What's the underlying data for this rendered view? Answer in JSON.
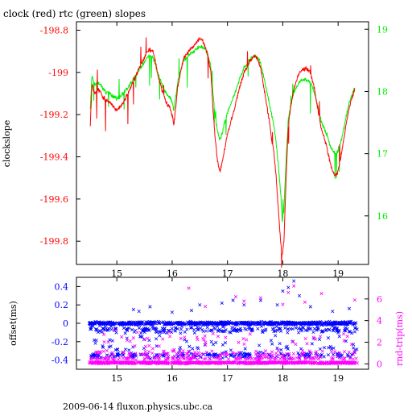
{
  "page": {
    "title": "clock (red) rtc (green) slopes",
    "footer": "2009-06-14 fluxon.physics.ubc.ca"
  },
  "colors": {
    "clock": "#ff0000",
    "rtc": "#00ee00",
    "offset": "#0000ff",
    "roundtrip": "#ff00ff",
    "axis": "#000000"
  },
  "chart_data": [
    {
      "type": "line",
      "ylabel": "clockslope",
      "y2label": "",
      "x_ticks": [
        "15",
        "16",
        "17",
        "18",
        "19"
      ],
      "y_ticks": [
        "-198.8",
        "-199",
        "-199.2",
        "-199.4",
        "-199.6",
        "-199.8"
      ],
      "y2_ticks": [
        "19",
        "18",
        "17",
        "16"
      ],
      "xlim": [
        14.27,
        19.55
      ],
      "ylim": [
        -199.91,
        -198.76
      ],
      "y2lim": [
        15.22,
        19.12
      ],
      "grid": false,
      "series": [
        {
          "name": "clock",
          "axis": "left",
          "x": [
            14.52,
            14.55,
            14.6,
            14.65,
            14.7,
            14.75,
            14.8,
            14.9,
            15.0,
            15.1,
            15.2,
            15.3,
            15.4,
            15.5,
            15.55,
            15.6,
            15.65,
            15.7,
            15.75,
            15.8,
            15.85,
            15.9,
            15.95,
            16.0,
            16.03,
            16.07,
            16.1,
            16.15,
            16.2,
            16.3,
            16.4,
            16.5,
            16.55,
            16.6,
            16.65,
            16.7,
            16.74,
            16.78,
            16.82,
            16.86,
            16.9,
            16.95,
            17.0,
            17.1,
            17.2,
            17.3,
            17.4,
            17.5,
            17.55,
            17.6,
            17.65,
            17.7,
            17.75,
            17.8,
            17.84,
            17.88,
            17.92,
            17.96,
            17.99,
            18.02,
            18.06,
            18.1,
            18.15,
            18.2,
            18.3,
            18.4,
            18.5,
            18.55,
            18.6,
            18.65,
            18.7,
            18.75,
            18.8,
            18.85,
            18.9,
            18.95,
            19.0,
            19.05,
            19.1,
            19.15,
            19.2,
            19.25,
            19.3
          ],
          "y": [
            -199.25,
            -199.06,
            -199.1,
            -199.08,
            -199.09,
            -199.12,
            -199.13,
            -199.15,
            -199.18,
            -199.15,
            -199.1,
            -199.04,
            -198.98,
            -198.93,
            -198.9,
            -198.89,
            -198.9,
            -198.95,
            -199.02,
            -199.07,
            -199.11,
            -199.15,
            -199.16,
            -199.2,
            -199.25,
            -199.15,
            -199.07,
            -199.0,
            -198.94,
            -198.9,
            -198.87,
            -198.84,
            -198.85,
            -198.88,
            -198.92,
            -199.0,
            -199.18,
            -199.32,
            -199.42,
            -199.47,
            -199.43,
            -199.36,
            -199.29,
            -199.2,
            -199.09,
            -199.0,
            -198.95,
            -198.92,
            -198.94,
            -198.98,
            -199.06,
            -199.14,
            -199.22,
            -199.32,
            -199.38,
            -199.5,
            -199.65,
            -199.8,
            -199.87,
            -199.8,
            -199.5,
            -199.25,
            -199.15,
            -199.08,
            -199.0,
            -198.98,
            -199.0,
            -199.05,
            -199.12,
            -199.2,
            -199.27,
            -199.31,
            -199.36,
            -199.42,
            -199.47,
            -199.49,
            -199.47,
            -199.4,
            -199.32,
            -199.24,
            -199.17,
            -199.12,
            -199.08
          ]
        },
        {
          "name": "rtc",
          "axis": "right",
          "x": [
            14.52,
            14.55,
            14.6,
            14.65,
            14.7,
            14.75,
            14.8,
            14.9,
            15.0,
            15.1,
            15.2,
            15.3,
            15.4,
            15.5,
            15.55,
            15.6,
            15.65,
            15.7,
            15.75,
            15.8,
            15.85,
            15.9,
            15.95,
            16.0,
            16.03,
            16.07,
            16.1,
            16.15,
            16.2,
            16.3,
            16.4,
            16.5,
            16.55,
            16.6,
            16.65,
            16.7,
            16.74,
            16.78,
            16.82,
            16.86,
            16.9,
            16.95,
            17.0,
            17.1,
            17.2,
            17.3,
            17.4,
            17.5,
            17.55,
            17.6,
            17.65,
            17.7,
            17.75,
            17.8,
            17.84,
            17.88,
            17.92,
            17.96,
            17.99,
            18.02,
            18.06,
            18.1,
            18.15,
            18.2,
            18.3,
            18.4,
            18.5,
            18.55,
            18.6,
            18.65,
            18.7,
            18.75,
            18.8,
            18.85,
            18.9,
            18.95,
            19.0,
            19.05,
            19.1,
            19.15,
            19.2,
            19.25,
            19.3
          ],
          "y": [
            17.72,
            18.25,
            18.1,
            18.15,
            18.12,
            18.04,
            18.0,
            17.95,
            17.88,
            17.95,
            18.05,
            18.2,
            18.35,
            18.47,
            18.55,
            18.58,
            18.55,
            18.42,
            18.28,
            18.15,
            18.05,
            17.95,
            17.92,
            17.82,
            17.7,
            17.95,
            18.15,
            18.32,
            18.48,
            18.58,
            18.65,
            18.72,
            18.72,
            18.68,
            18.58,
            18.38,
            17.95,
            17.58,
            17.35,
            17.22,
            17.32,
            17.5,
            17.66,
            17.88,
            18.15,
            18.38,
            18.5,
            18.58,
            18.54,
            18.45,
            18.25,
            18.05,
            17.85,
            17.62,
            17.45,
            17.18,
            16.8,
            16.4,
            15.9,
            16.1,
            16.9,
            17.55,
            17.8,
            17.98,
            18.15,
            18.2,
            18.15,
            18.05,
            17.88,
            17.68,
            17.5,
            17.4,
            17.3,
            17.15,
            17.05,
            16.98,
            17.05,
            17.2,
            17.4,
            17.62,
            17.82,
            17.95,
            18.05
          ]
        }
      ]
    },
    {
      "type": "scatter",
      "ylabel": "offset(ms)",
      "y2label": "rnd-trip(ms)",
      "x_ticks": [
        "15",
        "16",
        "17",
        "18",
        "19"
      ],
      "y_ticks": [
        "0.4",
        "0.2",
        "0",
        "-0.2",
        "-0.4"
      ],
      "y2_ticks": [
        "6",
        "4",
        "2",
        "0"
      ],
      "xlim": [
        14.27,
        19.55
      ],
      "ylim": [
        -0.5,
        0.5
      ],
      "y2lim": [
        -0.5,
        8.0
      ],
      "grid": false,
      "series": [
        {
          "name": "offset",
          "axis": "left",
          "marker": "x",
          "bands": [
            {
              "x": [
                14.5,
                19.35
              ],
              "y_center": 0.0,
              "y_spread": 0.025,
              "n": 700
            },
            {
              "x": [
                14.5,
                19.35
              ],
              "y_center": -0.07,
              "y_spread": 0.05,
              "n": 220
            },
            {
              "x": [
                14.5,
                19.35
              ],
              "y_center": -0.35,
              "y_spread": 0.04,
              "n": 180
            },
            {
              "x": [
                14.5,
                19.35
              ],
              "y_center": -0.25,
              "y_spread": 0.2,
              "n": 90
            }
          ],
          "outliers": [
            [
              15.3,
              0.15
            ],
            [
              15.4,
              0.13
            ],
            [
              15.6,
              0.18
            ],
            [
              16.0,
              0.12
            ],
            [
              16.35,
              0.14
            ],
            [
              16.5,
              0.2
            ],
            [
              16.9,
              0.22
            ],
            [
              17.1,
              0.25
            ],
            [
              17.3,
              0.2
            ],
            [
              17.6,
              0.25
            ],
            [
              17.9,
              0.2
            ],
            [
              18.0,
              0.35
            ],
            [
              18.1,
              0.39
            ],
            [
              18.2,
              0.46
            ],
            [
              18.3,
              0.3
            ],
            [
              18.5,
              0.18
            ],
            [
              18.9,
              0.13
            ],
            [
              19.2,
              0.16
            ]
          ]
        },
        {
          "name": "roundtrip",
          "axis": "right",
          "marker": "x",
          "bands": [
            {
              "x": [
                14.5,
                19.35
              ],
              "y_center": 0.1,
              "y_spread": 0.12,
              "n": 700
            },
            {
              "x": [
                14.5,
                19.35
              ],
              "y_center": 0.5,
              "y_spread": 0.2,
              "n": 140
            },
            {
              "x": [
                14.5,
                19.35
              ],
              "y_center": 1.0,
              "y_spread": 0.4,
              "n": 90
            },
            {
              "x": [
                14.5,
                19.35
              ],
              "y_center": 2.2,
              "y_spread": 1.2,
              "n": 50
            }
          ],
          "outliers": [
            [
              16.3,
              7.0
            ],
            [
              16.6,
              5.3
            ],
            [
              17.15,
              6.2
            ],
            [
              17.3,
              5.8
            ],
            [
              17.6,
              6.1
            ],
            [
              18.0,
              5.5
            ],
            [
              18.1,
              6.6
            ],
            [
              18.2,
              7.2
            ],
            [
              18.4,
              5.7
            ],
            [
              18.7,
              6.5
            ],
            [
              19.3,
              5.9
            ]
          ]
        }
      ]
    }
  ]
}
